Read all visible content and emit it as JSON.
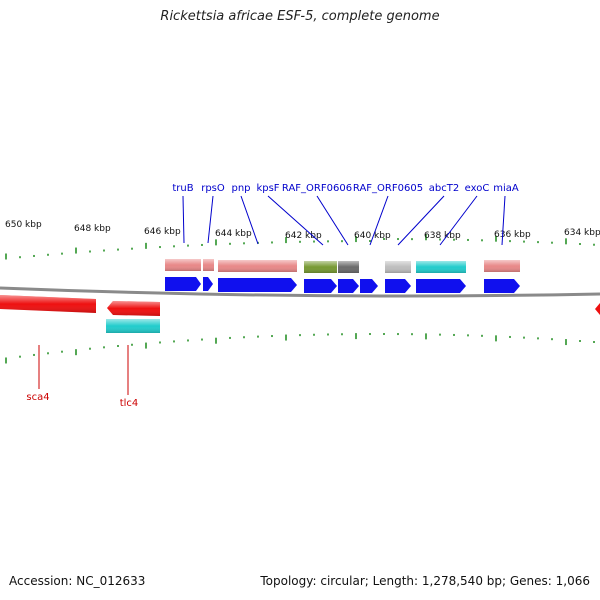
{
  "title": "Rickettsia africae ESF-5, complete genome",
  "footer": {
    "accession": "Accession: NC_012633",
    "summary": "Topology: circular; Length: 1,278,540 bp; Genes: 1,066"
  },
  "colors": {
    "backbone": "#8a8a8a",
    "tick": "#1a8a1a",
    "gene_label_top": "#0000cc",
    "gene_label_bottom": "#cc0000",
    "blue_cds": "#1010ee",
    "red_cds": "#ee1010",
    "cyan": "#22cccc",
    "pink": "#e88888",
    "olive": "#779933",
    "dark_gray": "#6b6b6b",
    "light_gray": "#bdbdbd"
  },
  "kbp_labels": [
    "650 kbp",
    "648 kbp",
    "646 kbp",
    "644 kbp",
    "642 kbp",
    "640 kbp",
    "638 kbp",
    "636 kbp",
    "634 kbp"
  ],
  "gene_labels_top": [
    "truB",
    "rpsO",
    "pnp",
    "kpsF",
    "RAF_ORF0606",
    "RAF_ORF0605",
    "abcT2",
    "exoC",
    "miaA"
  ],
  "gene_labels_bottom": [
    "sca4",
    "tlc4"
  ]
}
